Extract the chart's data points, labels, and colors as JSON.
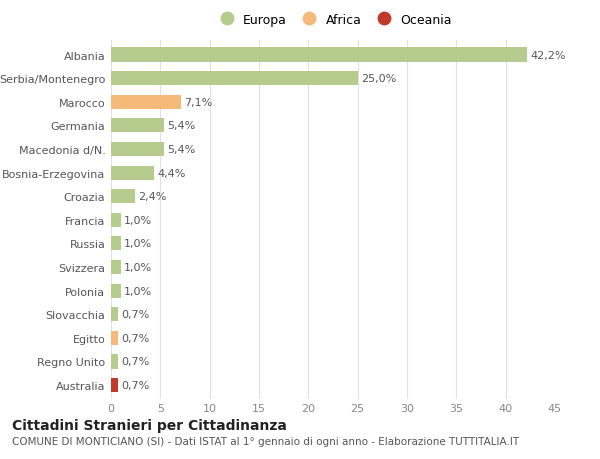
{
  "categories": [
    "Albania",
    "Serbia/Montenegro",
    "Marocco",
    "Germania",
    "Macedonia d/N.",
    "Bosnia-Erzegovina",
    "Croazia",
    "Francia",
    "Russia",
    "Svizzera",
    "Polonia",
    "Slovacchia",
    "Egitto",
    "Regno Unito",
    "Australia"
  ],
  "values": [
    42.2,
    25.0,
    7.1,
    5.4,
    5.4,
    4.4,
    2.4,
    1.0,
    1.0,
    1.0,
    1.0,
    0.7,
    0.7,
    0.7,
    0.7
  ],
  "labels": [
    "42,2%",
    "25,0%",
    "7,1%",
    "5,4%",
    "5,4%",
    "4,4%",
    "2,4%",
    "1,0%",
    "1,0%",
    "1,0%",
    "1,0%",
    "0,7%",
    "0,7%",
    "0,7%",
    "0,7%"
  ],
  "colors": [
    "#b5cc8e",
    "#b5cc8e",
    "#f5b97a",
    "#b5cc8e",
    "#b5cc8e",
    "#b5cc8e",
    "#b5cc8e",
    "#b5cc8e",
    "#b5cc8e",
    "#b5cc8e",
    "#b5cc8e",
    "#b5cc8e",
    "#f5b97a",
    "#b5cc8e",
    "#c0392b"
  ],
  "legend_labels": [
    "Europa",
    "Africa",
    "Oceania"
  ],
  "legend_colors": [
    "#b5cc8e",
    "#f5b97a",
    "#c0392b"
  ],
  "title": "Cittadini Stranieri per Cittadinanza",
  "subtitle": "COMUNE DI MONTICIANO (SI) - Dati ISTAT al 1° gennaio di ogni anno - Elaborazione TUTTITALIA.IT",
  "xlim": [
    0,
    45
  ],
  "xticks": [
    0,
    5,
    10,
    15,
    20,
    25,
    30,
    35,
    40,
    45
  ],
  "bg_color": "#ffffff",
  "grid_color": "#e0e0e0",
  "bar_height": 0.6,
  "title_fontsize": 10,
  "subtitle_fontsize": 7.5,
  "legend_fontsize": 9,
  "tick_fontsize": 8,
  "value_fontsize": 8
}
